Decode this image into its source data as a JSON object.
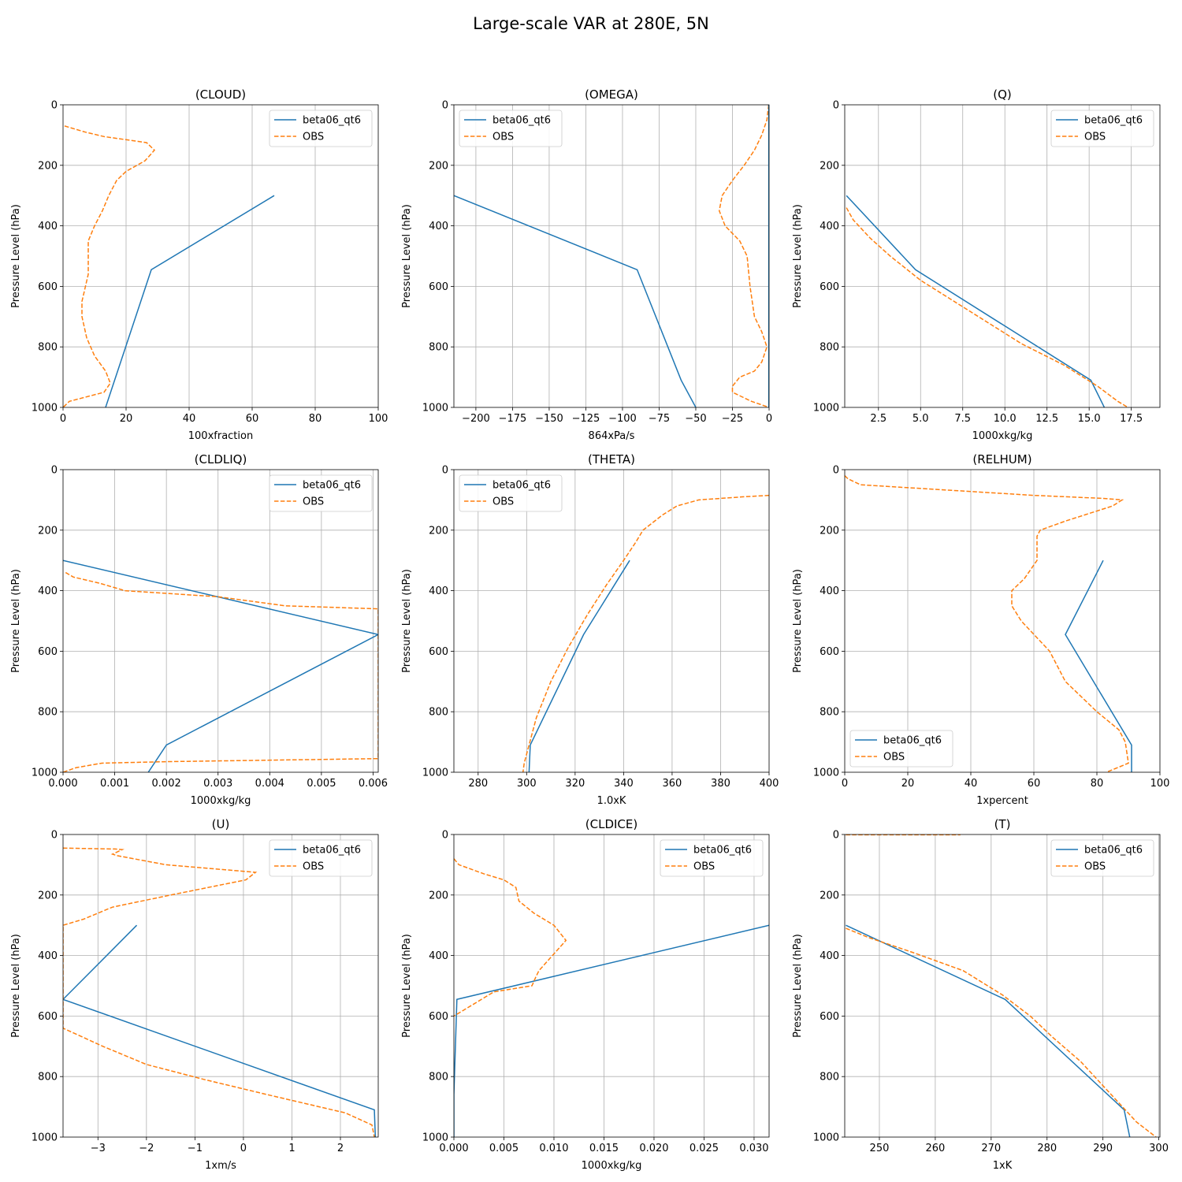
{
  "figure": {
    "title": "Large-scale VAR at 280E, 5N"
  },
  "colors": {
    "model": "#1f77b4",
    "obs": "#ff7f0e",
    "grid": "#b0b0b0"
  },
  "chart_data": [
    {
      "type": "line",
      "title": "(CLOUD)",
      "xlabel": "100xfraction",
      "ylabel": "Pressure Level (hPa)",
      "xlim": [
        0,
        100
      ],
      "ylim": [
        1000,
        0
      ],
      "legend": "upper right",
      "xticks": [
        0,
        20,
        40,
        60,
        80,
        100
      ],
      "xticklabels": [
        "0",
        "20",
        "40",
        "60",
        "80",
        "100"
      ],
      "yticks": [
        0,
        200,
        400,
        600,
        800,
        1000
      ],
      "yticklabels": [
        "0",
        "200",
        "400",
        "600",
        "800",
        "1000"
      ],
      "series": [
        {
          "name": "beta06_qt6",
          "style": "solid",
          "x": [
            67,
            28,
            13.5
          ],
          "y": [
            300,
            545,
            1000
          ]
        },
        {
          "name": "OBS",
          "style": "dashed",
          "x": [
            0.5,
            7,
            13,
            26.5,
            29,
            26,
            20,
            17,
            14.5,
            12.5,
            10,
            8,
            8,
            6,
            6,
            7.5,
            10,
            13.5,
            15,
            13,
            2,
            0
          ],
          "y": [
            70,
            90,
            105,
            125,
            150,
            185,
            220,
            250,
            300,
            350,
            400,
            450,
            560,
            650,
            700,
            770,
            830,
            880,
            920,
            950,
            980,
            1000
          ]
        }
      ]
    },
    {
      "type": "line",
      "title": "(OMEGA)",
      "xlabel": "864xPa/s",
      "ylabel": "Pressure Level (hPa)",
      "xlim": [
        -215,
        0
      ],
      "ylim": [
        1000,
        0
      ],
      "legend": "upper left",
      "xticks": [
        -200,
        -175,
        -150,
        -125,
        -100,
        -75,
        -50,
        -25,
        0
      ],
      "xticklabels": [
        "−200",
        "−175",
        "−150",
        "−125",
        "−100",
        "−75",
        "−50",
        "−25",
        "0"
      ],
      "yticks": [
        0,
        200,
        400,
        600,
        800,
        1000
      ],
      "yticklabels": [
        "0",
        "200",
        "400",
        "600",
        "800",
        "1000"
      ],
      "series": [
        {
          "name": "beta06_qt6",
          "style": "solid",
          "x": [
            -215,
            -90,
            -60,
            -50
          ],
          "y": [
            300,
            545,
            910,
            1000
          ]
        },
        {
          "name": "OBS",
          "style": "dashed",
          "x": [
            -0.3,
            -1.5,
            -5,
            -10,
            -17,
            -25,
            -32,
            -34,
            -30,
            -20,
            -15,
            -13,
            -10,
            -5,
            -1.5,
            -5,
            -10,
            -20,
            -25,
            -25,
            -12,
            0
          ],
          "y": [
            0,
            50,
            100,
            150,
            200,
            250,
            300,
            350,
            400,
            450,
            500,
            600,
            700,
            750,
            800,
            850,
            880,
            900,
            930,
            950,
            980,
            1000
          ]
        },
        {
          "name": "",
          "style": "solid",
          "x": [
            -0.2,
            -0.2
          ],
          "y": [
            0,
            1000
          ]
        }
      ]
    },
    {
      "type": "line",
      "title": "(Q)",
      "xlabel": "1000xkg/kg",
      "ylabel": "Pressure Level (hPa)",
      "xlim": [
        0.5,
        19.2
      ],
      "ylim": [
        1000,
        0
      ],
      "legend": "upper right",
      "xticks": [
        2.5,
        5.0,
        7.5,
        10.0,
        12.5,
        15.0,
        17.5
      ],
      "xticklabels": [
        "2.5",
        "5.0",
        "7.5",
        "10.0",
        "12.5",
        "15.0",
        "17.5"
      ],
      "yticks": [
        0,
        200,
        400,
        600,
        800,
        1000
      ],
      "yticklabels": [
        "0",
        "200",
        "400",
        "600",
        "800",
        "1000"
      ],
      "series": [
        {
          "name": "beta06_qt6",
          "style": "solid",
          "x": [
            0.6,
            4.7,
            15.1,
            15.9
          ],
          "y": [
            300,
            545,
            910,
            1000
          ]
        },
        {
          "name": "OBS",
          "style": "dashed",
          "x": [
            0.6,
            1.0,
            2.0,
            3.2,
            5.0,
            7.0,
            9.0,
            11.0,
            13.5,
            15.5,
            16.7,
            17.3
          ],
          "y": [
            340,
            380,
            440,
            500,
            580,
            650,
            720,
            790,
            860,
            930,
            980,
            1000
          ]
        }
      ]
    },
    {
      "type": "line",
      "title": "(CLDLIQ)",
      "xlabel": "1000xkg/kg",
      "ylabel": "Pressure Level (hPa)",
      "xlim": [
        0,
        0.0061
      ],
      "ylim": [
        1000,
        0
      ],
      "legend": "upper right",
      "xticks": [
        0,
        0.001,
        0.002,
        0.003,
        0.004,
        0.005,
        0.006
      ],
      "xticklabels": [
        "0.000",
        "0.001",
        "0.002",
        "0.003",
        "0.004",
        "0.005",
        "0.006"
      ],
      "yticks": [
        0,
        200,
        400,
        600,
        800,
        1000
      ],
      "yticklabels": [
        "0",
        "200",
        "400",
        "600",
        "800",
        "1000"
      ],
      "series": [
        {
          "name": "beta06_qt6",
          "style": "solid",
          "x": [
            0,
            0.0061,
            0.002,
            0.00165
          ],
          "y": [
            300,
            545,
            910,
            1000
          ]
        },
        {
          "name": "OBS",
          "style": "dashed",
          "x": [
            5e-05,
            0.0002,
            0.0007,
            0.0012,
            0.003,
            0.0043,
            0.0061,
            0.0061,
            0.002,
            0.00075,
            0.00025,
            0
          ],
          "y": [
            340,
            355,
            375,
            400,
            420,
            450,
            460,
            955,
            965,
            970,
            985,
            1000
          ]
        }
      ]
    },
    {
      "type": "line",
      "title": "(THETA)",
      "xlabel": "1.0xK",
      "ylabel": "Pressure Level (hPa)",
      "xlim": [
        270,
        400
      ],
      "ylim": [
        1000,
        0
      ],
      "legend": "upper left",
      "xticks": [
        280,
        300,
        320,
        340,
        360,
        380,
        400
      ],
      "xticklabels": [
        "280",
        "300",
        "320",
        "340",
        "360",
        "380",
        "400"
      ],
      "yticks": [
        0,
        200,
        400,
        600,
        800,
        1000
      ],
      "yticklabels": [
        "0",
        "200",
        "400",
        "600",
        "800",
        "1000"
      ],
      "series": [
        {
          "name": "beta06_qt6",
          "style": "solid",
          "x": [
            342.5,
            323.5,
            301.5,
            301
          ],
          "y": [
            300,
            545,
            910,
            1000
          ]
        },
        {
          "name": "OBS",
          "style": "dashed",
          "x": [
            400,
            389,
            371,
            362,
            356,
            348,
            345,
            340,
            333,
            325,
            317,
            310,
            304,
            301,
            299,
            298.5
          ],
          "y": [
            85,
            90,
            100,
            120,
            150,
            200,
            240,
            300,
            380,
            480,
            590,
            700,
            820,
            910,
            970,
            1000
          ]
        }
      ]
    },
    {
      "type": "line",
      "title": "(RELHUM)",
      "xlabel": "1xpercent",
      "ylabel": "Pressure Level (hPa)",
      "xlim": [
        0,
        100
      ],
      "ylim": [
        1000,
        0
      ],
      "legend": "lower left",
      "xticks": [
        0,
        20,
        40,
        60,
        80,
        100
      ],
      "xticklabels": [
        "0",
        "20",
        "40",
        "60",
        "80",
        "100"
      ],
      "yticks": [
        0,
        200,
        400,
        600,
        800,
        1000
      ],
      "yticklabels": [
        "0",
        "200",
        "400",
        "600",
        "800",
        "1000"
      ],
      "series": [
        {
          "name": "beta06_qt6",
          "style": "solid",
          "x": [
            82,
            70,
            91,
            91
          ],
          "y": [
            300,
            545,
            910,
            1000
          ]
        },
        {
          "name": "OBS",
          "style": "dashed",
          "x": [
            0,
            1,
            5,
            60,
            82,
            88,
            85,
            70,
            62,
            61,
            61,
            57,
            53,
            53,
            56,
            65,
            70,
            80,
            87,
            89,
            90,
            83
          ],
          "y": [
            20,
            30,
            50,
            85,
            95,
            100,
            120,
            170,
            200,
            220,
            300,
            360,
            400,
            450,
            500,
            600,
            700,
            800,
            860,
            900,
            970,
            1000
          ]
        }
      ]
    },
    {
      "type": "line",
      "title": "(U)",
      "xlabel": "1xm/s",
      "ylabel": "Pressure Level (hPa)",
      "xlim": [
        -3.72,
        2.78
      ],
      "ylim": [
        1000,
        0
      ],
      "legend": "upper right",
      "xticks": [
        -3,
        -2,
        -1,
        0,
        1,
        2
      ],
      "xticklabels": [
        "−3",
        "−2",
        "−1",
        "0",
        "1",
        "2"
      ],
      "yticks": [
        0,
        200,
        400,
        600,
        800,
        1000
      ],
      "yticklabels": [
        "0",
        "200",
        "400",
        "600",
        "800",
        "1000"
      ],
      "series": [
        {
          "name": "beta06_qt6",
          "style": "solid",
          "x": [
            -2.2,
            -3.72,
            2.7,
            2.72
          ],
          "y": [
            300,
            545,
            910,
            1000
          ]
        },
        {
          "name": "OBS",
          "style": "dashed",
          "x": [
            -3.72,
            -2.65,
            -2.5,
            -2.7,
            -2.6,
            -1.6,
            0.25,
            0.05,
            -1.5,
            -2.7,
            -3.3,
            -3.72,
            -3.72,
            -2.9,
            -2.0,
            -0.8,
            0.5,
            2.1,
            2.65,
            2.7
          ],
          "y": [
            45,
            48,
            50,
            65,
            70,
            100,
            125,
            150,
            200,
            240,
            280,
            300,
            640,
            700,
            760,
            810,
            860,
            920,
            960,
            1000
          ]
        }
      ]
    },
    {
      "type": "line",
      "title": "(CLDICE)",
      "xlabel": "1000xkg/kg",
      "ylabel": "Pressure Level (hPa)",
      "xlim": [
        0,
        0.0315
      ],
      "ylim": [
        1000,
        0
      ],
      "legend": "upper right",
      "xticks": [
        0,
        0.005,
        0.01,
        0.015,
        0.02,
        0.025,
        0.03
      ],
      "xticklabels": [
        "0.000",
        "0.005",
        "0.010",
        "0.015",
        "0.020",
        "0.025",
        "0.030"
      ],
      "yticks": [
        0,
        200,
        400,
        600,
        800,
        1000
      ],
      "yticklabels": [
        "0",
        "200",
        "400",
        "600",
        "800",
        "1000"
      ],
      "series": [
        {
          "name": "beta06_qt6",
          "style": "solid",
          "x": [
            0.0315,
            0.0003,
            0,
            0
          ],
          "y": [
            300,
            545,
            860,
            1000
          ]
        },
        {
          "name": "OBS",
          "style": "dashed",
          "x": [
            0,
            0.0005,
            0.003,
            0.005,
            0.0062,
            0.0065,
            0.008,
            0.01,
            0.0112,
            0.0085,
            0.0082,
            0.0078,
            0.004,
            0.0025,
            0.001,
            0
          ],
          "y": [
            80,
            100,
            130,
            150,
            175,
            220,
            260,
            300,
            350,
            450,
            470,
            500,
            520,
            550,
            580,
            600
          ]
        }
      ]
    },
    {
      "type": "line",
      "title": "(T)",
      "xlabel": "1xK",
      "ylabel": "Pressure Level (hPa)",
      "xlim": [
        243.8,
        300.2
      ],
      "ylim": [
        1000,
        0
      ],
      "legend": "upper right",
      "xticks": [
        250,
        260,
        270,
        280,
        290,
        300
      ],
      "xticklabels": [
        "250",
        "260",
        "270",
        "280",
        "290",
        "300"
      ],
      "yticks": [
        0,
        200,
        400,
        600,
        800,
        1000
      ],
      "yticklabels": [
        "0",
        "200",
        "400",
        "600",
        "800",
        "1000"
      ],
      "series": [
        {
          "name": "beta06_qt6",
          "style": "solid",
          "x": [
            244,
            272.5,
            293.8,
            294.8
          ],
          "y": [
            300,
            545,
            910,
            1000
          ]
        },
        {
          "name": "OBS",
          "style": "dashed",
          "x": [
            244,
            248,
            256,
            265,
            272,
            277,
            281,
            286,
            290,
            293.5,
            296,
            299.5
          ],
          "y": [
            310,
            340,
            390,
            450,
            530,
            600,
            670,
            750,
            830,
            900,
            950,
            1000
          ]
        },
        {
          "name": "",
          "style": "dashed",
          "x": [
            244,
            264.5
          ],
          "y": [
            1,
            1
          ]
        }
      ]
    }
  ]
}
